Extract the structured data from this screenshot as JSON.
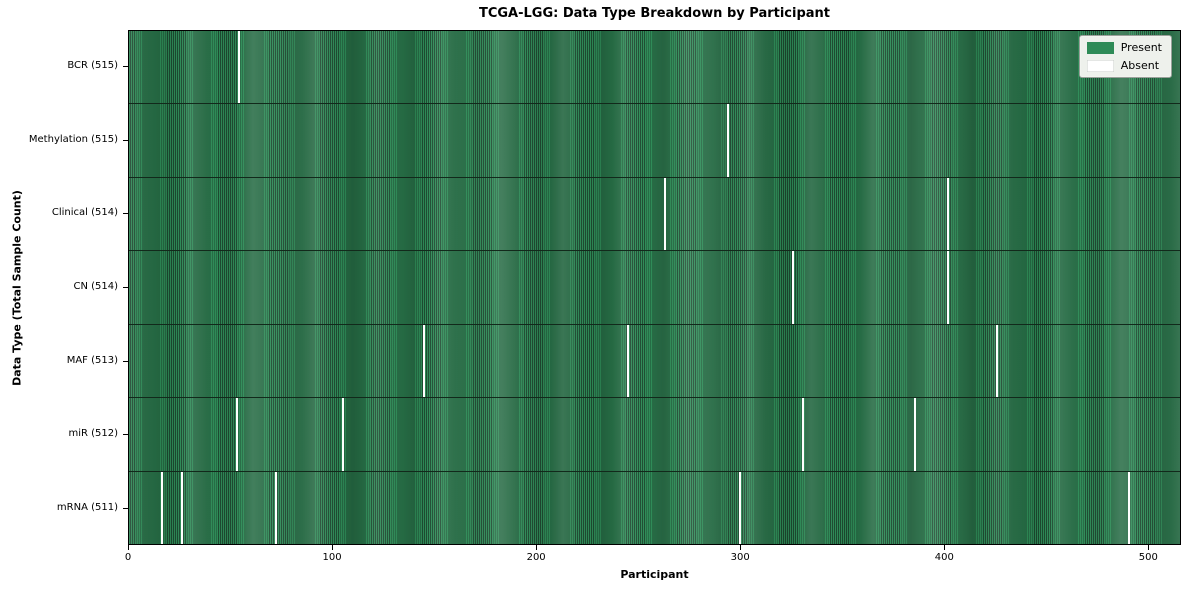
{
  "title": "TCGA-LGG: Data Type Breakdown by Participant",
  "chart_data": {
    "type": "heatmap",
    "title": "TCGA-LGG: Data Type Breakdown by Participant",
    "xlabel": "Participant",
    "ylabel": "Data Type (Total Sample Count)",
    "x_ticks": [
      0,
      100,
      200,
      300,
      400,
      500
    ],
    "x_range": [
      0,
      516
    ],
    "total_participants": 516,
    "grid": false,
    "legend_position": "upper right",
    "legend": [
      {
        "label": "Present",
        "color": "#2e8b57"
      },
      {
        "label": "Absent",
        "color": "#ffffff"
      }
    ],
    "colors": {
      "present": "#2e8b57",
      "present_edge": "#1d4b31",
      "absent": "#ffffff",
      "row_separator": "#12291b"
    },
    "rows": [
      {
        "label": "BCR (515)",
        "data_type": "BCR",
        "sample_count": 515,
        "absent_participants": [
          54
        ]
      },
      {
        "label": "Methylation (515)",
        "data_type": "Methylation",
        "sample_count": 515,
        "absent_participants": [
          294
        ]
      },
      {
        "label": "Clinical (514)",
        "data_type": "Clinical",
        "sample_count": 514,
        "absent_participants": [
          263,
          402
        ]
      },
      {
        "label": "CN (514)",
        "data_type": "CN",
        "sample_count": 514,
        "absent_participants": [
          326,
          402
        ]
      },
      {
        "label": "MAF (513)",
        "data_type": "MAF",
        "sample_count": 513,
        "absent_participants": [
          145,
          245,
          426
        ]
      },
      {
        "label": "miR (512)",
        "data_type": "miR",
        "sample_count": 512,
        "absent_participants": [
          53,
          105,
          331,
          386
        ]
      },
      {
        "label": "mRNA (511)",
        "data_type": "mRNA",
        "sample_count": 511,
        "absent_participants": [
          16,
          26,
          72,
          300,
          491
        ]
      }
    ]
  }
}
